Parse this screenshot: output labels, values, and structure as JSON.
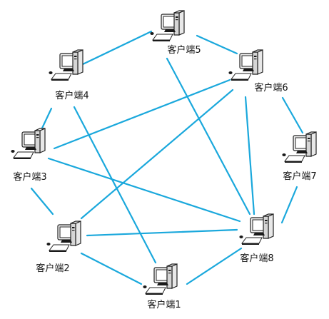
{
  "line_color": "#1aa8dc",
  "nodes": [
    {
      "id": "n1",
      "label": "客户端1",
      "icon": "desktop-computer-icon"
    },
    {
      "id": "n2",
      "label": "客户端2",
      "icon": "desktop-computer-icon"
    },
    {
      "id": "n3",
      "label": "客户端3",
      "icon": "desktop-computer-icon"
    },
    {
      "id": "n4",
      "label": "客户端4",
      "icon": "desktop-computer-icon"
    },
    {
      "id": "n5",
      "label": "客户端5",
      "icon": "desktop-computer-icon"
    },
    {
      "id": "n6",
      "label": "客户端6",
      "icon": "desktop-computer-icon"
    },
    {
      "id": "n7",
      "label": "客户端7",
      "icon": "desktop-computer-icon"
    },
    {
      "id": "n8",
      "label": "客户端8",
      "icon": "desktop-computer-icon"
    }
  ],
  "edges": [
    [
      "n4",
      "n5"
    ],
    [
      "n5",
      "n6"
    ],
    [
      "n4",
      "n3"
    ],
    [
      "n4",
      "n1"
    ],
    [
      "n5",
      "n8"
    ],
    [
      "n6",
      "n3"
    ],
    [
      "n6",
      "n2"
    ],
    [
      "n6",
      "n8"
    ],
    [
      "n6",
      "n7"
    ],
    [
      "n7",
      "n8"
    ],
    [
      "n3",
      "n8"
    ],
    [
      "n3",
      "n2"
    ],
    [
      "n2",
      "n8"
    ],
    [
      "n2",
      "n1"
    ],
    [
      "n1",
      "n8"
    ]
  ]
}
